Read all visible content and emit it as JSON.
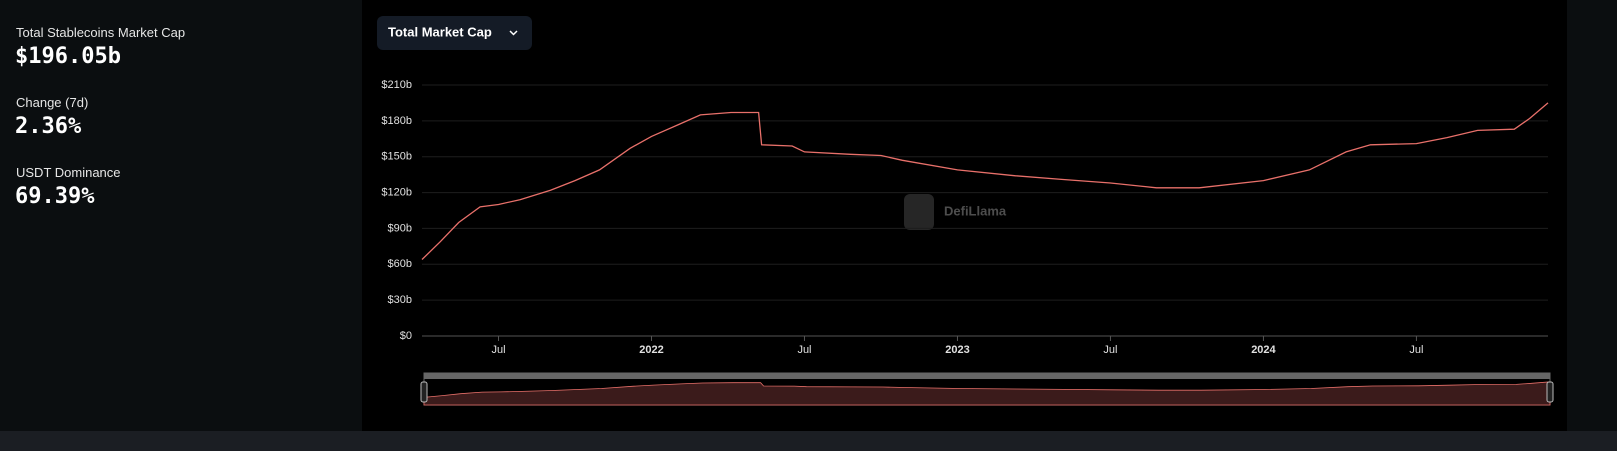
{
  "stats": [
    {
      "label": "Total Stablecoins Market Cap",
      "value": "$196.05b"
    },
    {
      "label": "Change (7d)",
      "value": "2.36%"
    },
    {
      "label": "USDT Dominance",
      "value": "69.39%"
    }
  ],
  "dropdown": "Total Market Cap",
  "watermark": "DefiLlama",
  "chart_data": {
    "type": "line",
    "x": [
      2021.25,
      2021.31,
      2021.37,
      2021.44,
      2021.5,
      2021.57,
      2021.67,
      2021.75,
      2021.83,
      2021.93,
      2022.0,
      2022.09,
      2022.16,
      2022.26,
      2022.35,
      2022.36,
      2022.46,
      2022.5,
      2022.65,
      2022.75,
      2022.82,
      2023.0,
      2023.19,
      2023.34,
      2023.5,
      2023.65,
      2023.79,
      2024.0,
      2024.15,
      2024.27,
      2024.35,
      2024.5,
      2024.6,
      2024.7,
      2024.82,
      2024.87,
      2024.93
    ],
    "series": [
      {
        "color": "#e8706a",
        "values": [
          64,
          79,
          95,
          108,
          110,
          114,
          122,
          130,
          139,
          157,
          167,
          177,
          185,
          187,
          187,
          160,
          159,
          154,
          152,
          151,
          147,
          139,
          134,
          131,
          128,
          124,
          124,
          130,
          139,
          154,
          160,
          161,
          166,
          172,
          173,
          182,
          195
        ]
      }
    ],
    "xlim": [
      2021.25,
      2024.93
    ],
    "xticks": [
      {
        "value": 2021.5,
        "label": "Jul"
      },
      {
        "value": 2022.0,
        "label": "2022"
      },
      {
        "value": 2022.5,
        "label": "Jul"
      },
      {
        "value": 2023.0,
        "label": "2023"
      },
      {
        "value": 2023.5,
        "label": "Jul"
      },
      {
        "value": 2024.0,
        "label": "2024"
      },
      {
        "value": 2024.5,
        "label": "Jul"
      }
    ],
    "ylim": [
      0,
      210
    ],
    "yticks": [
      {
        "value": 0,
        "label": "$0"
      },
      {
        "value": 30,
        "label": "$30b"
      },
      {
        "value": 60,
        "label": "$60b"
      },
      {
        "value": 90,
        "label": "$90b"
      },
      {
        "value": 120,
        "label": "$120b"
      },
      {
        "value": 150,
        "label": "$150b"
      },
      {
        "value": 180,
        "label": "$180b"
      },
      {
        "value": 210,
        "label": "$210b"
      }
    ],
    "grid": true
  }
}
